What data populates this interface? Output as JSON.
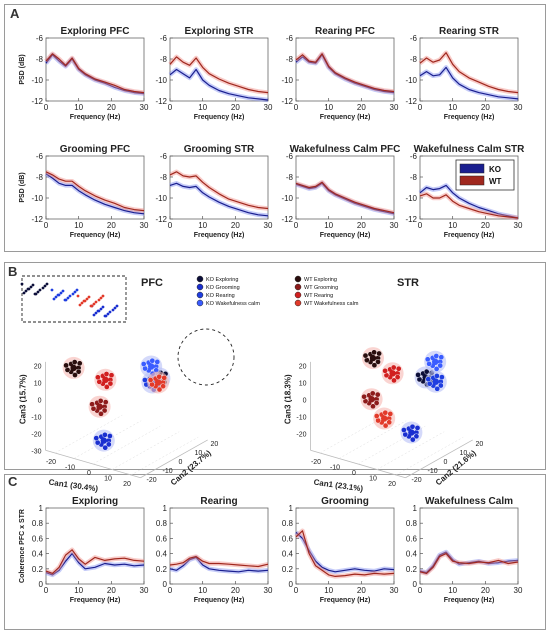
{
  "panels": {
    "A": {
      "letter": "A",
      "ylabel": "PSD (dB)",
      "xlabel": "Frequency (Hz)",
      "legend": [
        {
          "label": "KO",
          "color": "#1a1f8f"
        },
        {
          "label": "WT",
          "color": "#a0281e"
        }
      ],
      "xticks": [
        "0",
        "10",
        "20",
        "30"
      ],
      "yticks": [
        "-6",
        "-8",
        "-10",
        "-12"
      ]
    },
    "B": {
      "letter": "B",
      "pfc_title": "PFC",
      "str_title": "STR",
      "legend_ko": [
        "KO Exploring",
        "KO Grooming",
        "KO Rearing",
        "KO Wakefulness calm"
      ],
      "legend_wt": [
        "WT Exploring",
        "WT Grooming",
        "WT Rearing",
        "WT Wakefulness calm"
      ],
      "pfc_axes": {
        "can1": "Can1 (30.4%)",
        "can2": "Can2 (23.7%)",
        "can3": "Can3 (15.7%)"
      },
      "str_axes": {
        "can1": "Can1 (23.1%)",
        "can2": "Can2 (21.6%)",
        "can3": "Can3 (18.3%)"
      },
      "pfc_ticks": {
        "z": [
          "20",
          "10",
          "0",
          "-10",
          "-20",
          "-30"
        ],
        "x": [
          "-20",
          "-10",
          "0",
          "10",
          "20"
        ],
        "y": [
          "20",
          "10",
          "0",
          "-10",
          "-20"
        ]
      },
      "str_ticks": {
        "z": [
          "20",
          "10",
          "0",
          "-10",
          "-20"
        ],
        "x": [
          "-20",
          "-10",
          "0",
          "10",
          "20"
        ],
        "y": [
          "20",
          "10",
          "0",
          "-10",
          "-20"
        ]
      }
    },
    "C": {
      "letter": "C",
      "ylabel": "Coherence PFC x STR",
      "xlabel": "Frequency (Hz)",
      "xticks": [
        "0",
        "10",
        "20",
        "30"
      ],
      "yticks": [
        "1",
        "0.8",
        "0.6",
        "0.4",
        "0.2",
        "0"
      ]
    }
  },
  "chart_data": [
    {
      "type": "line",
      "title": "Exploring PFC",
      "xlabel": "Frequency (Hz)",
      "ylabel": "PSD (dB)",
      "xlim": [
        0,
        30
      ],
      "ylim": [
        -12,
        -6
      ],
      "x": [
        0,
        2,
        4,
        6,
        8,
        10,
        12,
        15,
        18,
        21,
        24,
        27,
        30
      ],
      "series": [
        {
          "name": "KO",
          "color": "#1a1f8f",
          "values": [
            -8.4,
            -7.6,
            -8.2,
            -8.7,
            -8.0,
            -9.0,
            -9.5,
            -10.0,
            -10.3,
            -10.7,
            -11.0,
            -11.2,
            -11.3
          ]
        },
        {
          "name": "WT",
          "color": "#a0281e",
          "values": [
            -8.2,
            -7.5,
            -8.0,
            -8.6,
            -7.9,
            -8.9,
            -9.4,
            -9.9,
            -10.2,
            -10.5,
            -10.9,
            -11.1,
            -11.2
          ]
        }
      ]
    },
    {
      "type": "line",
      "title": "Exploring STR",
      "xlabel": "Frequency (Hz)",
      "ylabel": "PSD (dB)",
      "xlim": [
        0,
        30
      ],
      "ylim": [
        -12,
        -6
      ],
      "x": [
        0,
        2,
        4,
        6,
        8,
        10,
        12,
        15,
        18,
        21,
        24,
        27,
        30
      ],
      "series": [
        {
          "name": "KO",
          "color": "#1a1f8f",
          "values": [
            -9.5,
            -9.0,
            -9.4,
            -9.8,
            -9.0,
            -10.0,
            -10.5,
            -11.0,
            -11.3,
            -11.5,
            -11.7,
            -11.8,
            -11.9
          ]
        },
        {
          "name": "WT",
          "color": "#a0281e",
          "values": [
            -8.5,
            -7.8,
            -8.3,
            -8.6,
            -7.9,
            -8.8,
            -9.4,
            -9.9,
            -10.3,
            -10.6,
            -10.9,
            -11.1,
            -11.2
          ]
        }
      ]
    },
    {
      "type": "line",
      "title": "Rearing PFC",
      "xlabel": "Frequency (Hz)",
      "ylabel": "PSD (dB)",
      "xlim": [
        0,
        30
      ],
      "ylim": [
        -12,
        -6
      ],
      "x": [
        0,
        2,
        4,
        6,
        8,
        10,
        12,
        15,
        18,
        21,
        24,
        27,
        30
      ],
      "series": [
        {
          "name": "KO",
          "color": "#1a1f8f",
          "values": [
            -8.3,
            -7.8,
            -8.3,
            -8.4,
            -7.6,
            -8.8,
            -9.4,
            -9.9,
            -10.3,
            -10.6,
            -10.9,
            -11.1,
            -11.2
          ]
        },
        {
          "name": "WT",
          "color": "#a0281e",
          "values": [
            -8.1,
            -7.6,
            -8.2,
            -8.3,
            -7.5,
            -8.7,
            -9.3,
            -9.8,
            -10.2,
            -10.5,
            -10.8,
            -11.0,
            -11.1
          ]
        }
      ]
    },
    {
      "type": "line",
      "title": "Rearing STR",
      "xlabel": "Frequency (Hz)",
      "ylabel": "PSD (dB)",
      "xlim": [
        0,
        30
      ],
      "ylim": [
        -12,
        -6
      ],
      "x": [
        0,
        2,
        4,
        6,
        8,
        10,
        12,
        15,
        18,
        21,
        24,
        27,
        30
      ],
      "series": [
        {
          "name": "KO",
          "color": "#1a1f8f",
          "values": [
            -9.6,
            -9.2,
            -9.6,
            -9.5,
            -8.8,
            -9.8,
            -10.4,
            -10.9,
            -11.2,
            -11.4,
            -11.6,
            -11.7,
            -11.8
          ]
        },
        {
          "name": "WT",
          "color": "#a0281e",
          "values": [
            -8.4,
            -7.9,
            -8.3,
            -8.1,
            -7.4,
            -8.5,
            -9.2,
            -9.8,
            -10.2,
            -10.6,
            -10.9,
            -11.1,
            -11.2
          ]
        }
      ]
    },
    {
      "type": "line",
      "title": "Grooming PFC",
      "xlabel": "Frequency (Hz)",
      "ylabel": "PSD (dB)",
      "xlim": [
        0,
        30
      ],
      "ylim": [
        -12,
        -6
      ],
      "x": [
        0,
        2,
        4,
        6,
        8,
        10,
        12,
        15,
        18,
        21,
        24,
        27,
        30
      ],
      "series": [
        {
          "name": "KO",
          "color": "#1a1f8f",
          "values": [
            -7.7,
            -8.1,
            -8.6,
            -8.8,
            -8.8,
            -9.3,
            -9.7,
            -10.2,
            -10.6,
            -10.9,
            -11.2,
            -11.4,
            -11.5
          ]
        },
        {
          "name": "WT",
          "color": "#a0281e",
          "values": [
            -7.5,
            -7.8,
            -8.2,
            -8.4,
            -8.4,
            -8.9,
            -9.3,
            -9.8,
            -10.2,
            -10.5,
            -10.9,
            -11.1,
            -11.2
          ]
        }
      ]
    },
    {
      "type": "line",
      "title": "Grooming STR",
      "xlabel": "Frequency (Hz)",
      "ylabel": "PSD (dB)",
      "xlim": [
        0,
        30
      ],
      "ylim": [
        -12,
        -6
      ],
      "x": [
        0,
        2,
        4,
        6,
        8,
        10,
        12,
        15,
        18,
        21,
        24,
        27,
        30
      ],
      "series": [
        {
          "name": "KO",
          "color": "#1a1f8f",
          "values": [
            -8.8,
            -8.6,
            -8.9,
            -9.0,
            -8.9,
            -9.5,
            -9.9,
            -10.4,
            -10.8,
            -11.1,
            -11.4,
            -11.6,
            -11.7
          ]
        },
        {
          "name": "WT",
          "color": "#a0281e",
          "values": [
            -7.8,
            -7.5,
            -7.9,
            -8.0,
            -7.9,
            -8.5,
            -9.0,
            -9.6,
            -10.1,
            -10.4,
            -10.7,
            -10.9,
            -11.0
          ]
        }
      ]
    },
    {
      "type": "line",
      "title": "Wakefulness Calm PFC",
      "xlabel": "Frequency (Hz)",
      "ylabel": "PSD (dB)",
      "xlim": [
        0,
        30
      ],
      "ylim": [
        -12,
        -6
      ],
      "x": [
        0,
        2,
        4,
        6,
        8,
        10,
        12,
        15,
        18,
        21,
        24,
        27,
        30
      ],
      "series": [
        {
          "name": "KO",
          "color": "#1a1f8f",
          "values": [
            -8.7,
            -8.9,
            -9.1,
            -9.0,
            -8.6,
            -9.3,
            -9.7,
            -10.1,
            -10.5,
            -10.8,
            -11.1,
            -11.3,
            -11.5
          ]
        },
        {
          "name": "WT",
          "color": "#a0281e",
          "values": [
            -8.6,
            -8.8,
            -9.0,
            -8.9,
            -8.5,
            -9.2,
            -9.6,
            -10.0,
            -10.4,
            -10.7,
            -11.0,
            -11.2,
            -11.4
          ]
        }
      ]
    },
    {
      "type": "line",
      "title": "Wakefulness Calm STR",
      "xlabel": "Frequency (Hz)",
      "ylabel": "PSD (dB)",
      "xlim": [
        0,
        30
      ],
      "ylim": [
        -12,
        -6
      ],
      "x": [
        0,
        2,
        4,
        6,
        8,
        10,
        12,
        15,
        18,
        21,
        24,
        27,
        30
      ],
      "series": [
        {
          "name": "KO",
          "color": "#1a1f8f",
          "values": [
            -9.5,
            -9.0,
            -9.2,
            -9.1,
            -8.8,
            -9.5,
            -10.0,
            -10.5,
            -10.9,
            -11.2,
            -11.5,
            -11.7,
            -11.9
          ]
        },
        {
          "name": "WT",
          "color": "#a0281e",
          "values": [
            -9.8,
            -9.6,
            -10.0,
            -10.0,
            -9.7,
            -10.3,
            -10.7,
            -11.0,
            -11.3,
            -11.5,
            -11.7,
            -11.8,
            -11.9
          ]
        }
      ]
    },
    {
      "type": "scatter",
      "title": "PFC",
      "xlabel": "Can1 (30.4%)",
      "ylabel": "Can2 (23.7%)",
      "zlabel": "Can3 (15.7%)",
      "series": [
        {
          "name": "KO Exploring",
          "color": "#0d0f3a",
          "points": [
            [
              8,
              12,
              6
            ]
          ]
        },
        {
          "name": "KO Grooming",
          "color": "#1a2fd0",
          "points": [
            [
              4,
              -18,
              -16
            ]
          ]
        },
        {
          "name": "KO Rearing",
          "color": "#1f3ee0",
          "points": [
            [
              6,
              10,
              4
            ]
          ]
        },
        {
          "name": "KO Wakefulness calm",
          "color": "#3a5cff",
          "points": [
            [
              2,
              14,
              10
            ]
          ]
        },
        {
          "name": "WT Exploring",
          "color": "#2a0d0d",
          "points": [
            [
              -22,
              -6,
              12
            ]
          ]
        },
        {
          "name": "WT Grooming",
          "color": "#8e1b1b",
          "points": [
            [
              -10,
              -4,
              -8
            ]
          ]
        },
        {
          "name": "WT Rearing",
          "color": "#d11f1f",
          "points": [
            [
              -12,
              2,
              4
            ]
          ]
        },
        {
          "name": "WT Wakefulness calm",
          "color": "#e23a2a",
          "points": [
            [
              9,
              10,
              5
            ]
          ]
        }
      ]
    },
    {
      "type": "scatter",
      "title": "STR",
      "xlabel": "Can1 (23.1%)",
      "ylabel": "Can2 (21.6%)",
      "zlabel": "Can3 (18.3%)",
      "series": [
        {
          "name": "KO Exploring",
          "color": "#0d0f3a",
          "points": [
            [
              12,
              8,
              10
            ]
          ]
        },
        {
          "name": "KO Grooming",
          "color": "#1a2fd0",
          "points": [
            [
              18,
              -8,
              -12
            ]
          ]
        },
        {
          "name": "KO Rearing",
          "color": "#1f3ee0",
          "points": [
            [
              14,
              12,
              6
            ]
          ]
        },
        {
          "name": "KO Wakefulness calm",
          "color": "#3a5cff",
          "points": [
            [
              12,
              14,
              16
            ]
          ]
        },
        {
          "name": "WT Exploring",
          "color": "#2a0d0d",
          "points": [
            [
              -14,
              6,
              14
            ]
          ]
        },
        {
          "name": "WT Grooming",
          "color": "#8e1b1b",
          "points": [
            [
              -8,
              -2,
              -4
            ]
          ]
        },
        {
          "name": "WT Rearing",
          "color": "#d11f1f",
          "points": [
            [
              -2,
              4,
              10
            ]
          ]
        },
        {
          "name": "WT Wakefulness calm",
          "color": "#e23a2a",
          "points": [
            [
              2,
              -6,
              -10
            ]
          ]
        }
      ]
    },
    {
      "type": "line",
      "title": "Exploring",
      "xlabel": "Frequency (Hz)",
      "ylabel": "Coherence PFC x STR",
      "xlim": [
        0,
        30
      ],
      "ylim": [
        0,
        1
      ],
      "x": [
        0,
        2,
        4,
        6,
        8,
        10,
        12,
        15,
        18,
        21,
        24,
        27,
        30
      ],
      "series": [
        {
          "name": "KO",
          "color": "#1a1f8f",
          "values": [
            0.15,
            0.12,
            0.18,
            0.3,
            0.4,
            0.28,
            0.2,
            0.22,
            0.27,
            0.25,
            0.26,
            0.24,
            0.25
          ]
        },
        {
          "name": "WT",
          "color": "#a0281e",
          "values": [
            0.17,
            0.14,
            0.22,
            0.38,
            0.45,
            0.33,
            0.26,
            0.35,
            0.31,
            0.33,
            0.34,
            0.31,
            0.3
          ]
        }
      ]
    },
    {
      "type": "line",
      "title": "Rearing",
      "xlabel": "Frequency (Hz)",
      "ylabel": "Coherence PFC x STR",
      "xlim": [
        0,
        30
      ],
      "ylim": [
        0,
        1
      ],
      "x": [
        0,
        2,
        4,
        6,
        8,
        10,
        12,
        15,
        18,
        21,
        24,
        27,
        30
      ],
      "series": [
        {
          "name": "KO",
          "color": "#1a1f8f",
          "values": [
            0.2,
            0.18,
            0.24,
            0.32,
            0.35,
            0.25,
            0.2,
            0.18,
            0.17,
            0.16,
            0.18,
            0.17,
            0.18
          ]
        },
        {
          "name": "WT",
          "color": "#a0281e",
          "values": [
            0.25,
            0.26,
            0.28,
            0.34,
            0.36,
            0.3,
            0.27,
            0.27,
            0.26,
            0.25,
            0.24,
            0.23,
            0.26
          ]
        }
      ]
    },
    {
      "type": "line",
      "title": "Grooming",
      "xlabel": "Frequency (Hz)",
      "ylabel": "Coherence PFC x STR",
      "xlim": [
        0,
        30
      ],
      "ylim": [
        0,
        1
      ],
      "x": [
        0,
        2,
        4,
        6,
        8,
        10,
        12,
        15,
        18,
        21,
        24,
        27,
        30
      ],
      "series": [
        {
          "name": "KO",
          "color": "#1a1f8f",
          "values": [
            0.68,
            0.6,
            0.44,
            0.3,
            0.22,
            0.18,
            0.16,
            0.18,
            0.2,
            0.18,
            0.17,
            0.2,
            0.19
          ]
        },
        {
          "name": "WT",
          "color": "#a0281e",
          "values": [
            0.62,
            0.7,
            0.4,
            0.24,
            0.18,
            0.12,
            0.1,
            0.11,
            0.13,
            0.12,
            0.14,
            0.13,
            0.14
          ]
        }
      ]
    },
    {
      "type": "line",
      "title": "Wakefulness Calm",
      "xlabel": "Frequency (Hz)",
      "ylabel": "Coherence PFC x STR",
      "xlim": [
        0,
        30
      ],
      "ylim": [
        0,
        1
      ],
      "x": [
        0,
        2,
        4,
        6,
        8,
        10,
        12,
        15,
        18,
        21,
        24,
        27,
        30
      ],
      "series": [
        {
          "name": "KO",
          "color": "#1a1f8f",
          "values": [
            0.17,
            0.15,
            0.24,
            0.38,
            0.42,
            0.32,
            0.26,
            0.28,
            0.3,
            0.27,
            0.28,
            0.3,
            0.31
          ]
        },
        {
          "name": "WT",
          "color": "#a0281e",
          "values": [
            0.16,
            0.14,
            0.22,
            0.36,
            0.4,
            0.3,
            0.28,
            0.27,
            0.29,
            0.28,
            0.31,
            0.27,
            0.29
          ]
        }
      ]
    }
  ]
}
